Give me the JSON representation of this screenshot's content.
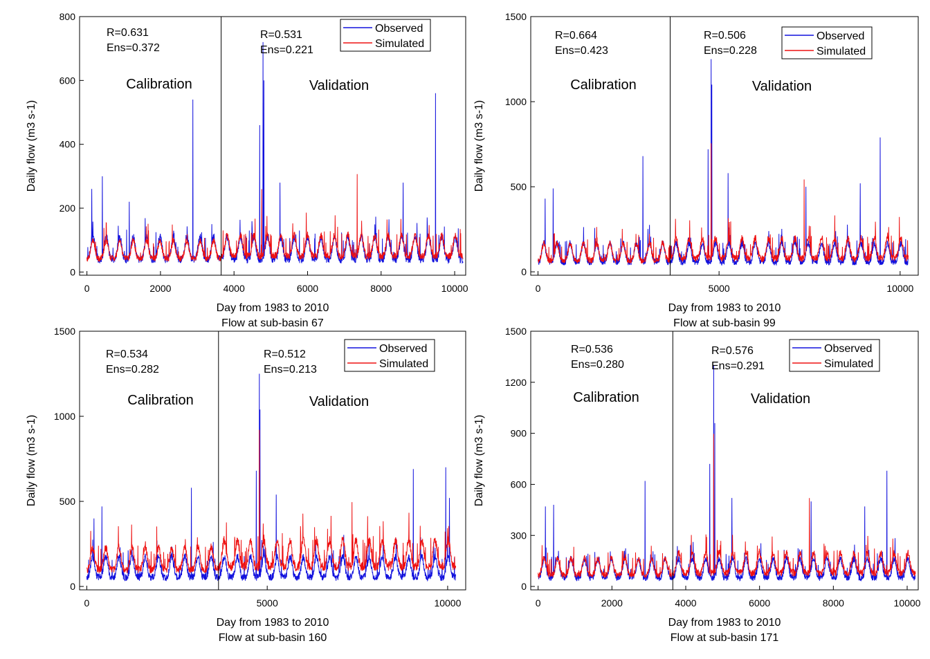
{
  "colors": {
    "observed": "#1111dd",
    "simulated": "#ee1111",
    "axis": "#000000",
    "background": "#ffffff"
  },
  "chart_data": [
    {
      "type": "line",
      "xlabel": "Day from 1983 to 2010",
      "caption": "Flow at sub-basin 67",
      "ylabel": "Daily flow (m3 s-1)",
      "xlim": [
        -200,
        10300
      ],
      "ylim": [
        -10,
        800
      ],
      "xticks": [
        0,
        2000,
        4000,
        6000,
        8000,
        10000
      ],
      "xtick_labels": [
        "0",
        "2000",
        "4000",
        "6000",
        "8000",
        "10000"
      ],
      "yticks": [
        0,
        200,
        400,
        600,
        800
      ],
      "ytick_labels": [
        "0",
        "200",
        "400",
        "600",
        "800"
      ],
      "split_day": 3650,
      "calibration": {
        "label": "Calibration",
        "R": "R=0.631",
        "Ens": "Ens=0.372"
      },
      "validation": {
        "label": "Validation",
        "R": "R=0.531",
        "Ens": "Ens=0.221"
      },
      "legend": {
        "observed": "Observed",
        "simulated": "Simulated"
      },
      "observed_base": 50,
      "observed_amp": 70,
      "simulated_base": 60,
      "simulated_amp": 55,
      "observed_peaks": [
        [
          130,
          260
        ],
        [
          420,
          300
        ],
        [
          1150,
          220
        ],
        [
          2880,
          540
        ],
        [
          4700,
          460
        ],
        [
          4790,
          720
        ],
        [
          4810,
          600
        ],
        [
          5250,
          280
        ],
        [
          8600,
          280
        ],
        [
          9480,
          560
        ]
      ],
      "simulated_peaks": [
        [
          7350,
          260
        ],
        [
          4750,
          220
        ]
      ]
    },
    {
      "type": "line",
      "xlabel": "Day from 1983 to 2010",
      "caption": "Flow at sub-basin 99",
      "ylabel": "Daily flow (m3 s-1)",
      "xlim": [
        -200,
        10500
      ],
      "ylim": [
        -20,
        1500
      ],
      "xticks": [
        0,
        5000,
        10000
      ],
      "xtick_labels": [
        "0",
        "5000",
        "10000"
      ],
      "yticks": [
        0,
        500,
        1000,
        1500
      ],
      "ytick_labels": [
        "0",
        "500",
        "1000",
        "1500"
      ],
      "split_day": 3650,
      "calibration": {
        "label": "Calibration",
        "R": "R=0.664",
        "Ens": "Ens=0.423"
      },
      "validation": {
        "label": "Validation",
        "R": "R=0.506",
        "Ens": "Ens=0.228"
      },
      "legend": {
        "observed": "Observed",
        "simulated": "Simulated"
      },
      "observed_base": 70,
      "observed_amp": 110,
      "simulated_base": 90,
      "simulated_amp": 100,
      "observed_peaks": [
        [
          200,
          430
        ],
        [
          420,
          490
        ],
        [
          2900,
          680
        ],
        [
          4700,
          720
        ],
        [
          4780,
          1250
        ],
        [
          4800,
          1100
        ],
        [
          5250,
          580
        ],
        [
          7400,
          500
        ],
        [
          8900,
          520
        ],
        [
          9450,
          790
        ]
      ],
      "simulated_peaks": [
        [
          4780,
          640
        ],
        [
          7350,
          460
        ]
      ]
    },
    {
      "type": "line",
      "xlabel": "Day from 1983 to 2010",
      "caption": "Flow at sub-basin 160",
      "ylabel": "Daily flow (m3 s-1)",
      "xlim": [
        -200,
        10500
      ],
      "ylim": [
        -20,
        1500
      ],
      "xticks": [
        0,
        5000,
        10000
      ],
      "xtick_labels": [
        "0",
        "5000",
        "10000"
      ],
      "yticks": [
        0,
        500,
        1000,
        1500
      ],
      "ytick_labels": [
        "0",
        "500",
        "1000",
        "1500"
      ],
      "split_day": 3650,
      "calibration": {
        "label": "Calibration",
        "R": "R=0.534",
        "Ens": "Ens=0.282"
      },
      "validation": {
        "label": "Validation",
        "R": "R=0.512",
        "Ens": "Ens=0.213"
      },
      "legend": {
        "observed": "Observed",
        "simulated": "Simulated"
      },
      "observed_base": 60,
      "observed_amp": 120,
      "simulated_base": 140,
      "simulated_amp": 130,
      "observed_peaks": [
        [
          200,
          400
        ],
        [
          420,
          470
        ],
        [
          2900,
          580
        ],
        [
          4700,
          680
        ],
        [
          4780,
          1250
        ],
        [
          4800,
          1040
        ],
        [
          5250,
          540
        ],
        [
          9050,
          690
        ],
        [
          9950,
          700
        ],
        [
          10050,
          520
        ]
      ],
      "simulated_peaks": [
        [
          4780,
          780
        ],
        [
          7350,
          420
        ]
      ]
    },
    {
      "type": "line",
      "xlabel": "Day from 1983 to 2010",
      "caption": "Flow at sub-basin 171",
      "ylabel": "Daily flow (m3 s-1)",
      "xlim": [
        -200,
        10300
      ],
      "ylim": [
        -20,
        1500
      ],
      "xticks": [
        0,
        2000,
        4000,
        6000,
        8000,
        10000
      ],
      "xtick_labels": [
        "0",
        "2000",
        "4000",
        "6000",
        "8000",
        "10000"
      ],
      "yticks": [
        0,
        300,
        600,
        900,
        1200,
        1500
      ],
      "ytick_labels": [
        "0",
        "300",
        "600",
        "900",
        "1200",
        "1500"
      ],
      "split_day": 3650,
      "calibration": {
        "label": "Calibration",
        "R": "R=0.536",
        "Ens": "Ens=0.280"
      },
      "validation": {
        "label": "Validation",
        "R": "R=0.576",
        "Ens": "Ens=0.291"
      },
      "legend": {
        "observed": "Observed",
        "simulated": "Simulated"
      },
      "observed_base": 60,
      "observed_amp": 110,
      "simulated_base": 90,
      "simulated_amp": 100,
      "observed_peaks": [
        [
          200,
          470
        ],
        [
          420,
          480
        ],
        [
          2900,
          620
        ],
        [
          4650,
          720
        ],
        [
          4760,
          1300
        ],
        [
          4790,
          960
        ],
        [
          5250,
          520
        ],
        [
          7400,
          500
        ],
        [
          8850,
          470
        ],
        [
          9450,
          680
        ]
      ],
      "simulated_peaks": [
        [
          4760,
          760
        ],
        [
          7350,
          440
        ]
      ]
    }
  ]
}
